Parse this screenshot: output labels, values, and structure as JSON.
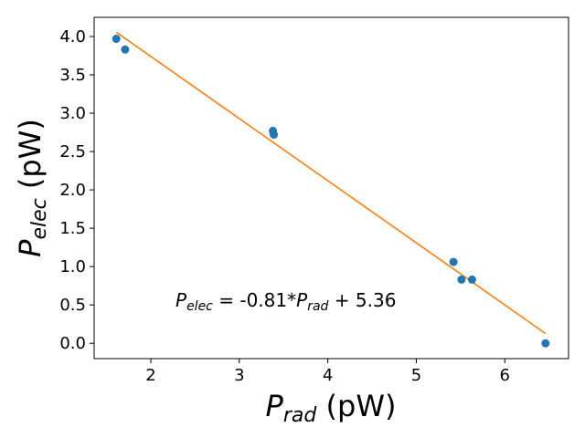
{
  "chart_data": {
    "type": "scatter",
    "xlabel": {
      "main": "P",
      "sub": "rad",
      "unit": " (pW)"
    },
    "ylabel": {
      "main": "P",
      "sub": "elec",
      "unit": " (pW)"
    },
    "xlim": [
      1.36,
      6.72
    ],
    "ylim": [
      -0.2,
      4.25
    ],
    "xticks": [
      2,
      3,
      4,
      5,
      6
    ],
    "xtick_labels": [
      "2",
      "3",
      "4",
      "5",
      "6"
    ],
    "yticks": [
      0.0,
      0.5,
      1.0,
      1.5,
      2.0,
      2.5,
      3.0,
      3.5,
      4.0
    ],
    "ytick_labels": [
      "0.0",
      "0.5",
      "1.0",
      "1.5",
      "2.0",
      "2.5",
      "3.0",
      "3.5",
      "4.0"
    ],
    "grid": false,
    "series": [
      {
        "kind": "scatter",
        "color": "#1f77b4",
        "points": [
          {
            "x": 1.61,
            "y": 3.97
          },
          {
            "x": 1.71,
            "y": 3.83
          },
          {
            "x": 3.38,
            "y": 2.77
          },
          {
            "x": 3.39,
            "y": 2.72
          },
          {
            "x": 5.42,
            "y": 1.06
          },
          {
            "x": 5.51,
            "y": 0.83
          },
          {
            "x": 5.63,
            "y": 0.83
          },
          {
            "x": 6.46,
            "y": 0.0
          }
        ]
      },
      {
        "kind": "line",
        "color": "#ff7f0e",
        "slope": -0.81,
        "intercept": 5.36,
        "x_range": [
          1.61,
          6.46
        ]
      }
    ],
    "annotation": {
      "lhs_main": "P",
      "lhs_sub": "elec",
      "mid": " = -0.81*",
      "rhs_main": "P",
      "rhs_sub": "rad",
      "tail": " + 5.36"
    }
  }
}
